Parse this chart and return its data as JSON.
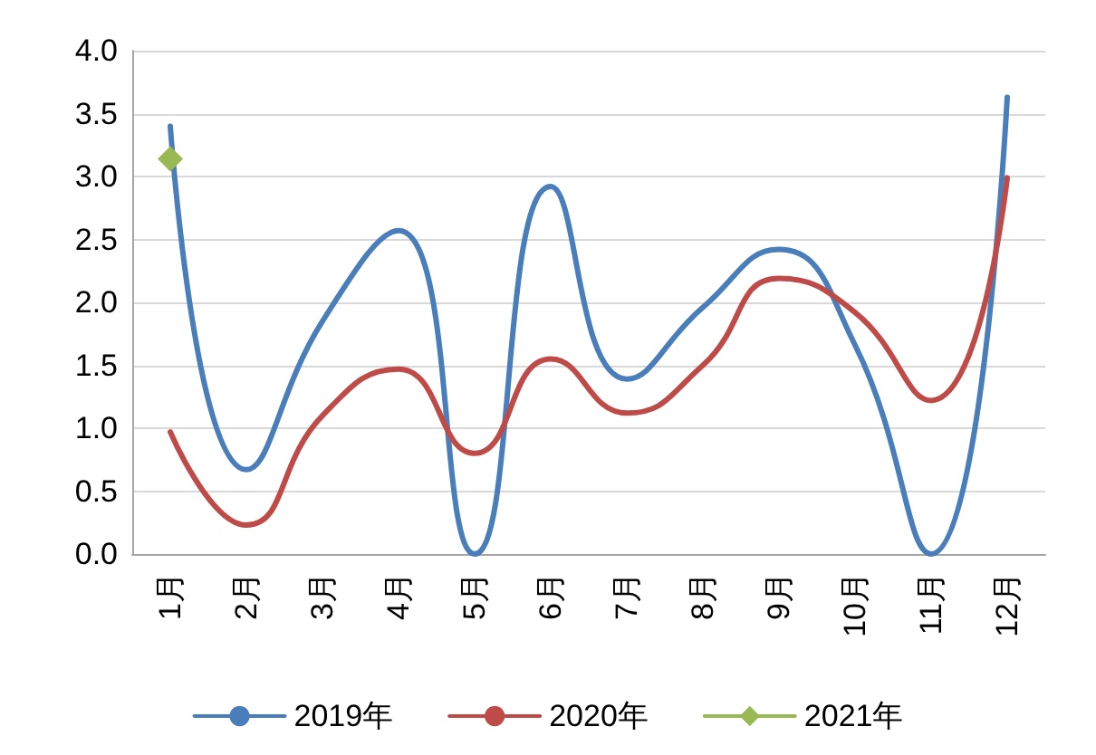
{
  "chart_data": {
    "type": "line",
    "categories": [
      "1月",
      "2月",
      "3月",
      "4月",
      "5月",
      "6月",
      "7月",
      "8月",
      "9月",
      "10月",
      "11月",
      "12月"
    ],
    "series": [
      {
        "name": "2019年",
        "color": "#4a7ebb",
        "marker": "none",
        "values": [
          3.4,
          0.67,
          1.85,
          2.57,
          0.0,
          2.92,
          1.39,
          1.96,
          2.42,
          1.66,
          0.0,
          3.63
        ]
      },
      {
        "name": "2020年",
        "color": "#be4b48",
        "marker": "none",
        "values": [
          0.97,
          0.23,
          1.1,
          1.47,
          0.8,
          1.55,
          1.12,
          1.5,
          2.19,
          1.92,
          1.22,
          2.99
        ]
      },
      {
        "name": "2021年",
        "color": "#98b954",
        "marker": "diamond",
        "values": [
          3.14,
          null,
          null,
          null,
          null,
          null,
          null,
          null,
          null,
          null,
          null,
          null
        ]
      }
    ],
    "ylim": [
      0,
      4
    ],
    "yticks": [
      {
        "value": 0,
        "label": "0.0"
      },
      {
        "value": 0.5,
        "label": "0.5"
      },
      {
        "value": 1,
        "label": "1.0"
      },
      {
        "value": 1.5,
        "label": "1.5"
      },
      {
        "value": 2,
        "label": "2.0"
      },
      {
        "value": 2.5,
        "label": "2.5"
      },
      {
        "value": 3,
        "label": "3.0"
      },
      {
        "value": 3.5,
        "label": "3.5"
      },
      {
        "value": 4,
        "label": "4.0"
      }
    ],
    "grid": "y",
    "legend": "bottom"
  }
}
